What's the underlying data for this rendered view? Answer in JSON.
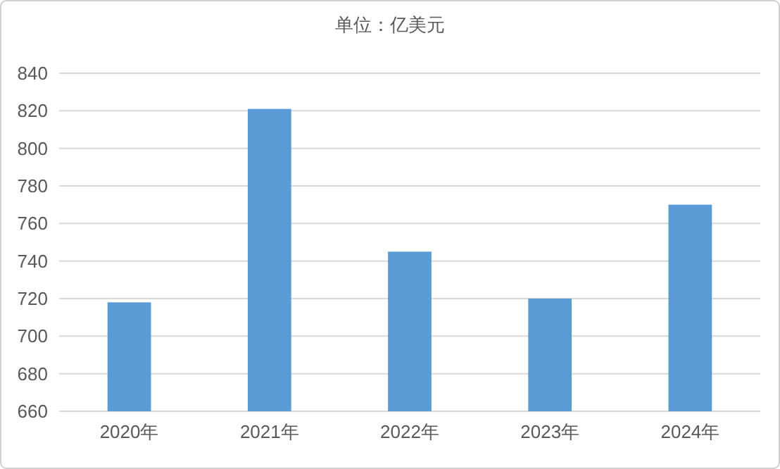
{
  "chart_data": {
    "type": "bar",
    "title": "单位：亿美元",
    "categories": [
      "2020年",
      "2021年",
      "2022年",
      "2023年",
      "2024年"
    ],
    "values": [
      718,
      821,
      745,
      720,
      770
    ],
    "color": "#5b9bd5",
    "ylim": [
      660,
      840
    ],
    "yticks": [
      660,
      680,
      700,
      720,
      740,
      760,
      780,
      800,
      820,
      840
    ],
    "grid": "y"
  }
}
